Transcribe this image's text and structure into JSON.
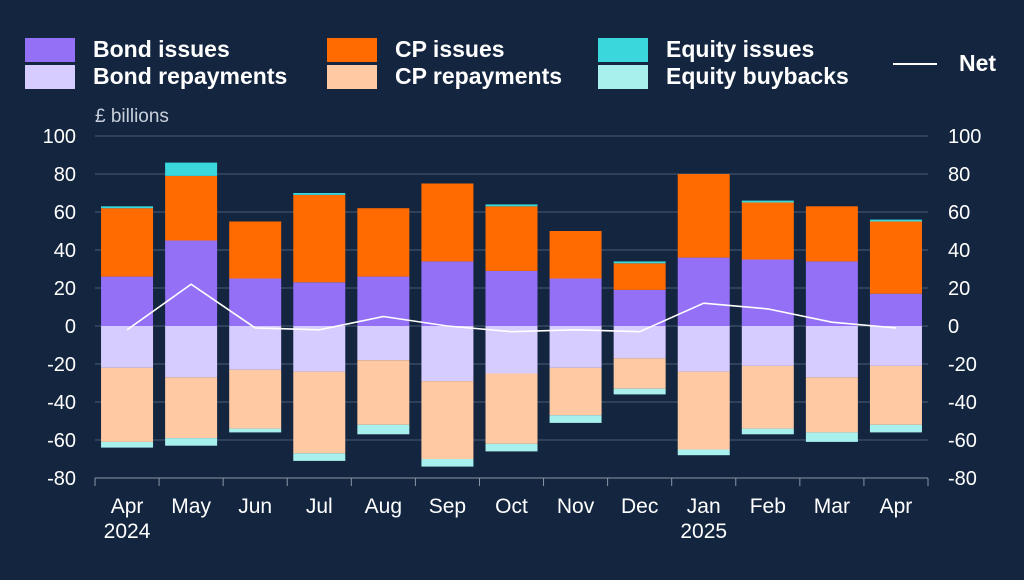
{
  "chart_data": {
    "type": "bar",
    "stacked": true,
    "unit_label": "£ billions",
    "categories": [
      "Apr",
      "May",
      "Jun",
      "Jul",
      "Aug",
      "Sep",
      "Oct",
      "Nov",
      "Dec",
      "Jan",
      "Feb",
      "Mar",
      "Apr"
    ],
    "year_labels": [
      "2024",
      "",
      "",
      "",
      "",
      "",
      "",
      "",
      "",
      "2025",
      "",
      "",
      ""
    ],
    "ylim": [
      -80,
      100
    ],
    "yticks": [
      "100",
      "80",
      "60",
      "40",
      "20",
      "0",
      "-20",
      "-40",
      "-60",
      "-80"
    ],
    "grid": true,
    "legend_position": "top",
    "series": [
      {
        "name": "Bond issues",
        "color": "#9370f5",
        "values": [
          26,
          45,
          25,
          23,
          26,
          34,
          29,
          25,
          19,
          36,
          35,
          34,
          17
        ]
      },
      {
        "name": "CP issues",
        "color": "#ff6b00",
        "values": [
          36,
          34,
          30,
          46,
          36,
          41,
          34,
          25,
          14,
          44,
          30,
          29,
          38
        ]
      },
      {
        "name": "Equity issues",
        "color": "#3ad8dc",
        "values": [
          1,
          7,
          0,
          1,
          0,
          0,
          1,
          0,
          1,
          0,
          1,
          0,
          1
        ]
      },
      {
        "name": "Bond repayments",
        "color": "#d7ccff",
        "values": [
          -22,
          -27,
          -23,
          -24,
          -18,
          -29,
          -25,
          -22,
          -17,
          -24,
          -21,
          -27,
          -21
        ]
      },
      {
        "name": "CP repayments",
        "color": "#ffc9a3",
        "values": [
          -39,
          -32,
          -31,
          -43,
          -34,
          -41,
          -37,
          -25,
          -16,
          -41,
          -33,
          -29,
          -31
        ]
      },
      {
        "name": "Equity buybacks",
        "color": "#a8f0ee",
        "values": [
          -3,
          -4,
          -2,
          -4,
          -5,
          -4,
          -4,
          -4,
          -3,
          -3,
          -3,
          -5,
          -4
        ]
      },
      {
        "name": "Net",
        "type": "line",
        "color": "#ffffff",
        "values": [
          -2,
          22,
          -1,
          -2,
          5,
          0,
          -3,
          -2,
          -3,
          12,
          9,
          2,
          -1
        ]
      }
    ]
  }
}
